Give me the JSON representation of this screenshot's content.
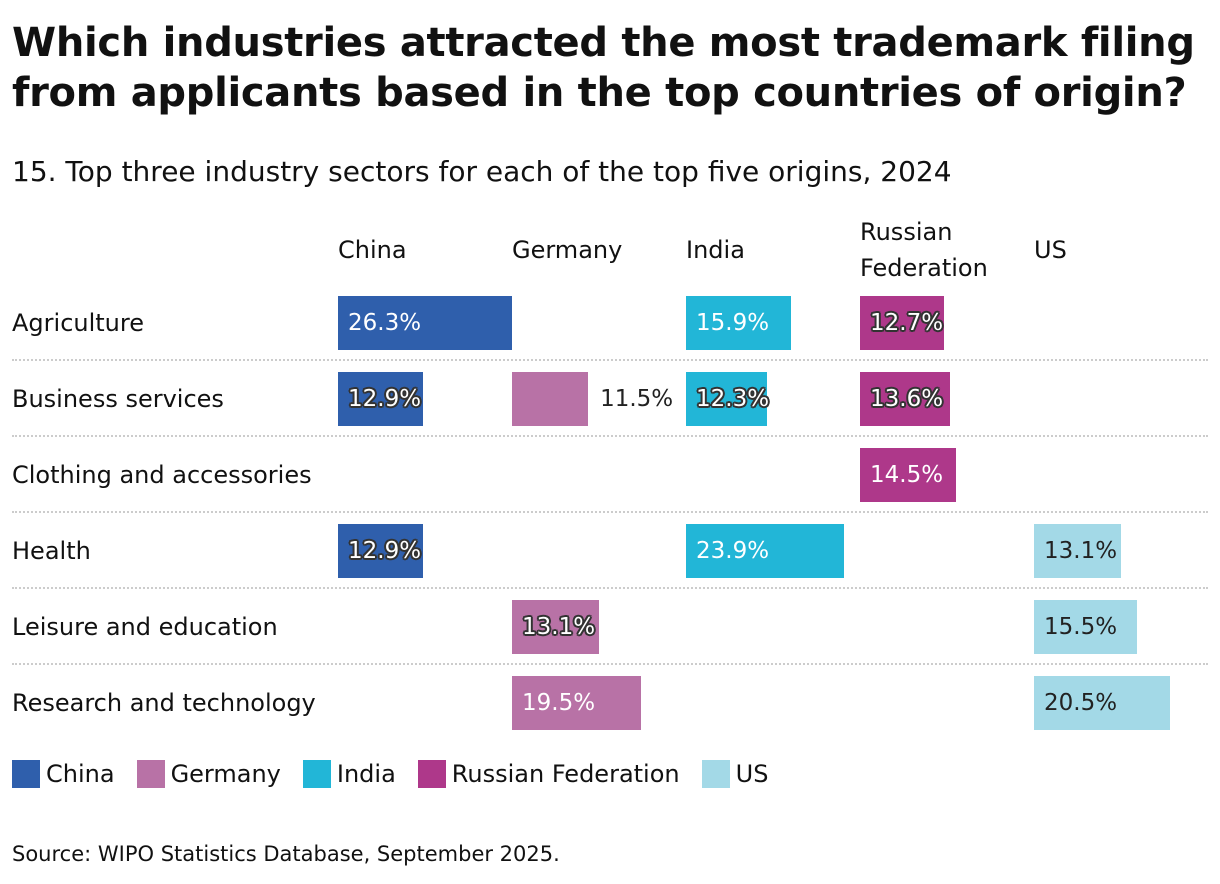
{
  "title": "Which industries attracted the most trademark filing from applicants based in the top countries of origin?",
  "subtitle": "15. Top three industry sectors for each of the top five origins, 2024",
  "source": "Source: WIPO Statistics Database, September 2025.",
  "chart_data": {
    "type": "bar",
    "columns": [
      {
        "name": "China",
        "label": [
          "China"
        ],
        "color": "#2f5fac"
      },
      {
        "name": "Germany",
        "label": [
          "Germany"
        ],
        "color": "#b872a6"
      },
      {
        "name": "India",
        "label": [
          "India"
        ],
        "color": "#22b6d7"
      },
      {
        "name": "Russian Federation",
        "label": [
          "Russian",
          "Federation"
        ],
        "color": "#ae388a"
      },
      {
        "name": "US",
        "label": [
          "US"
        ],
        "color": "#a3d9e7"
      }
    ],
    "categories": [
      "Agriculture",
      "Business services",
      "Clothing and accessories",
      "Health",
      "Leisure and education",
      "Research and technology"
    ],
    "series": [
      {
        "name": "China",
        "values": [
          26.3,
          12.9,
          null,
          12.9,
          null,
          null
        ]
      },
      {
        "name": "Germany",
        "values": [
          null,
          11.5,
          null,
          null,
          13.1,
          19.5
        ]
      },
      {
        "name": "India",
        "values": [
          15.9,
          12.3,
          null,
          23.9,
          null,
          null
        ]
      },
      {
        "name": "Russian Federation",
        "values": [
          12.7,
          13.6,
          14.5,
          null,
          null,
          null
        ]
      },
      {
        "name": "US",
        "values": [
          null,
          null,
          null,
          13.1,
          15.5,
          20.5
        ]
      }
    ],
    "unit": "%",
    "legend": "bottom-left"
  }
}
